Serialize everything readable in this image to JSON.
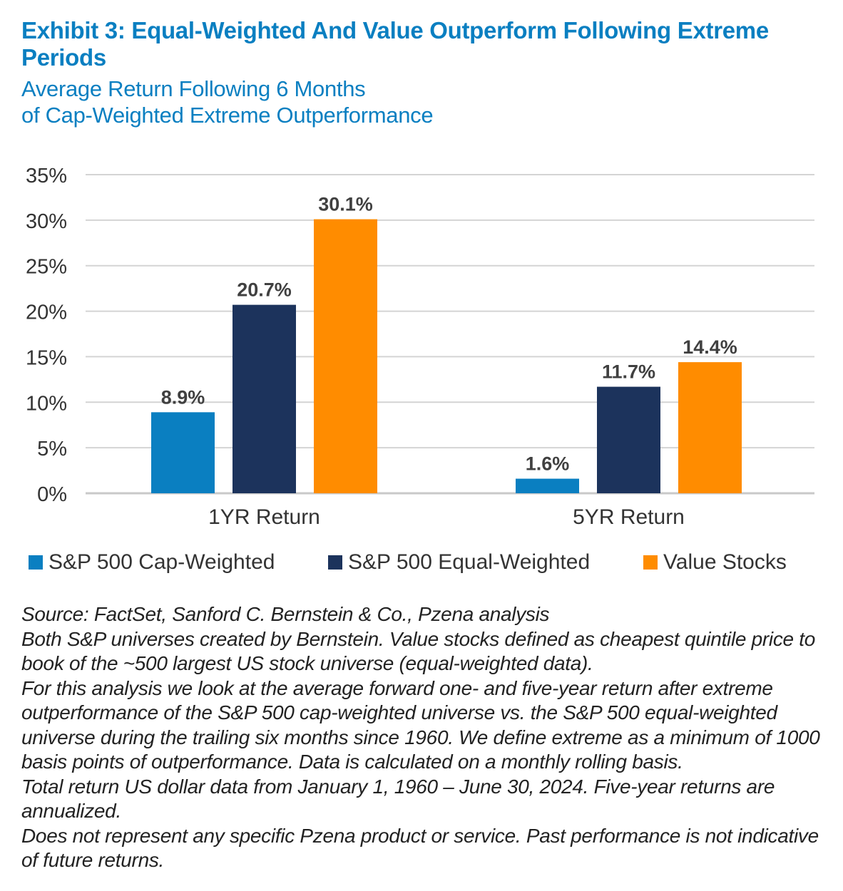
{
  "title": "Exhibit 3: Equal-Weighted And Value Outperform Following Extreme Periods",
  "subtitle_lines": [
    "Average Return Following 6 Months",
    "of Cap-Weighted Extreme Outperformance"
  ],
  "chart_data": {
    "type": "bar",
    "title": "Exhibit 3: Equal-Weighted And Value Outperform Following Extreme Periods",
    "subtitle": "Average Return Following 6 Months of Cap-Weighted Extreme Outperformance",
    "categories": [
      "1YR Return",
      "5YR Return"
    ],
    "series": [
      {
        "name": "S&P 500 Cap-Weighted",
        "values": [
          8.9,
          1.6
        ],
        "labels": [
          "8.9%",
          "1.6%"
        ],
        "color": "#0a7fc1"
      },
      {
        "name": "S&P 500 Equal-Weighted",
        "values": [
          20.7,
          11.7
        ],
        "labels": [
          "20.7%",
          "11.7%"
        ],
        "color": "#1c335c"
      },
      {
        "name": "Value Stocks",
        "values": [
          30.1,
          14.4
        ],
        "labels": [
          "30.1%",
          "14.4%"
        ],
        "color": "#ff8c00"
      }
    ],
    "ylim": [
      0,
      35
    ],
    "yticks": [
      0,
      5,
      10,
      15,
      20,
      25,
      30,
      35
    ],
    "ytick_labels": [
      "0%",
      "5%",
      "10%",
      "15%",
      "20%",
      "25%",
      "30%",
      "35%"
    ],
    "xlabel": "",
    "ylabel": "",
    "grid": true,
    "legend_position": "bottom"
  },
  "legend": [
    {
      "label": "S&P 500 Cap-Weighted",
      "color": "#0a7fc1"
    },
    {
      "label": "S&P 500 Equal-Weighted",
      "color": "#1c335c"
    },
    {
      "label": "Value Stocks",
      "color": "#ff8c00"
    }
  ],
  "notes": [
    "Source: FactSet, Sanford C. Bernstein & Co., Pzena analysis",
    "Both S&P universes created by Bernstein. Value stocks defined as cheapest quintile price to book of the ~500 largest US stock universe (equal-weighted data).",
    "For this analysis we look at the average forward one- and five-year return after extreme outperformance of the S&P 500 cap-weighted universe vs. the S&P 500 equal-weighted universe during the trailing six months since 1960. We define extreme as a minimum of 1000 basis points of outperformance. Data is calculated on a monthly rolling basis.",
    "Total return US dollar data from January 1, 1960 – June 30, 2024. Five-year returns are annualized.",
    "Does not represent any specific Pzena product or service. Past performance is not indicative of future returns."
  ]
}
